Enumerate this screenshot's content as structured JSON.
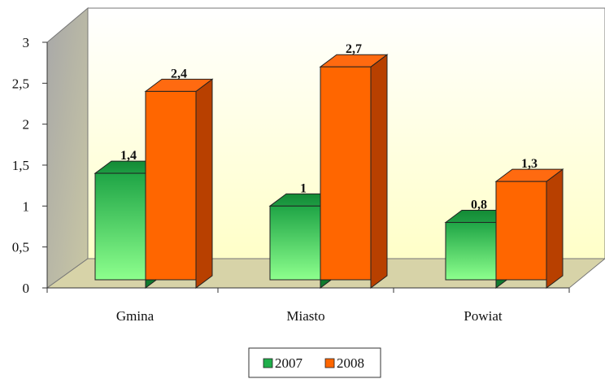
{
  "chart_data": {
    "type": "bar",
    "style": "3d-clustered-column",
    "categories": [
      "Gmina",
      "Miasto",
      "Powiat"
    ],
    "series": [
      {
        "name": "2007",
        "values": [
          1.4,
          1,
          0.8
        ],
        "labels": [
          "1,4",
          "1",
          "0,8"
        ],
        "color": "#1fae4a"
      },
      {
        "name": "2008",
        "values": [
          2.4,
          2.7,
          1.3
        ],
        "labels": [
          "2,4",
          "2,7",
          "1,3"
        ],
        "color": "#ff6600"
      }
    ],
    "yticks": [
      "0",
      "0,5",
      "1",
      "1,5",
      "2",
      "2,5",
      "3"
    ],
    "ylim": [
      0,
      3
    ],
    "title": "",
    "xlabel": "",
    "ylabel": "",
    "grid": false,
    "legend": "bottom-center",
    "colors": {
      "wall_left": "#b0b0ac",
      "wall_back_top": "#ffffff",
      "wall_back_bottom": "#ffffcc",
      "floor": "#d6d2a6"
    }
  }
}
